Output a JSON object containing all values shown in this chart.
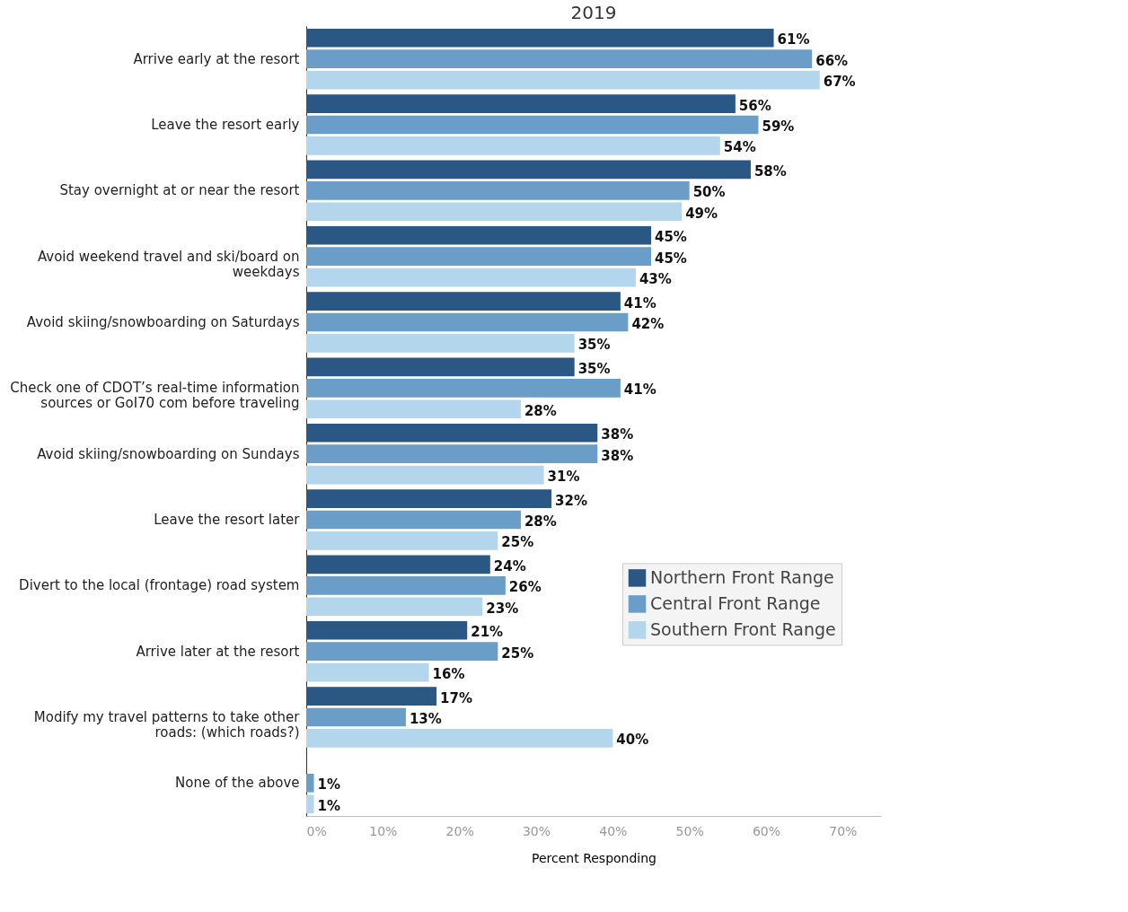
{
  "chart_data": {
    "type": "bar",
    "orientation": "horizontal",
    "title": "2019",
    "xlabel": "Percent Responding",
    "categories": [
      "Arrive early at the resort",
      "Leave the resort early",
      "Stay overnight at or near the resort",
      "Avoid weekend travel and ski/board on weekdays",
      "Avoid skiing/snowboarding on Saturdays",
      "Check one of CDOT’s real-time information sources or GoI70 com before traveling",
      "Avoid skiing/snowboarding on Sundays",
      "Leave the resort later",
      "Divert to the local (frontage) road system",
      "Arrive later at the resort",
      "Modify my travel patterns to take other roads: (which roads?)",
      "None of the above"
    ],
    "series": [
      {
        "name": "Northern Front Range",
        "color": "#2a5783",
        "values": [
          61,
          56,
          58,
          45,
          41,
          35,
          38,
          32,
          24,
          21,
          17,
          null
        ],
        "value_labels": [
          "61%",
          "56%",
          "58%",
          "45%",
          "41%",
          "35%",
          "38%",
          "32%",
          "24%",
          "21%",
          "17%",
          null
        ]
      },
      {
        "name": "Central Front Range",
        "color": "#6a9ec9",
        "values": [
          66,
          59,
          50,
          45,
          42,
          41,
          38,
          28,
          26,
          25,
          13,
          1
        ],
        "value_labels": [
          "66%",
          "59%",
          "50%",
          "45%",
          "42%",
          "41%",
          "38%",
          "28%",
          "26%",
          "25%",
          "13%",
          "1%"
        ]
      },
      {
        "name": "Southern Front Range",
        "color": "#b4d6ec",
        "values": [
          67,
          54,
          49,
          43,
          35,
          28,
          31,
          25,
          23,
          16,
          40,
          1
        ],
        "value_labels": [
          "67%",
          "54%",
          "49%",
          "43%",
          "35%",
          "28%",
          "31%",
          "25%",
          "23%",
          "16%",
          "40%",
          "1%"
        ]
      }
    ],
    "xlim": [
      0,
      75
    ],
    "xticks": [
      {
        "value": 0,
        "label": "0%"
      },
      {
        "value": 10,
        "label": "10%"
      },
      {
        "value": 20,
        "label": "20%"
      },
      {
        "value": 30,
        "label": "30%"
      },
      {
        "value": 40,
        "label": "40%"
      },
      {
        "value": 50,
        "label": "50%"
      },
      {
        "value": 60,
        "label": "60%"
      },
      {
        "value": 70,
        "label": "70%"
      }
    ],
    "grid": false,
    "legend": "right"
  }
}
